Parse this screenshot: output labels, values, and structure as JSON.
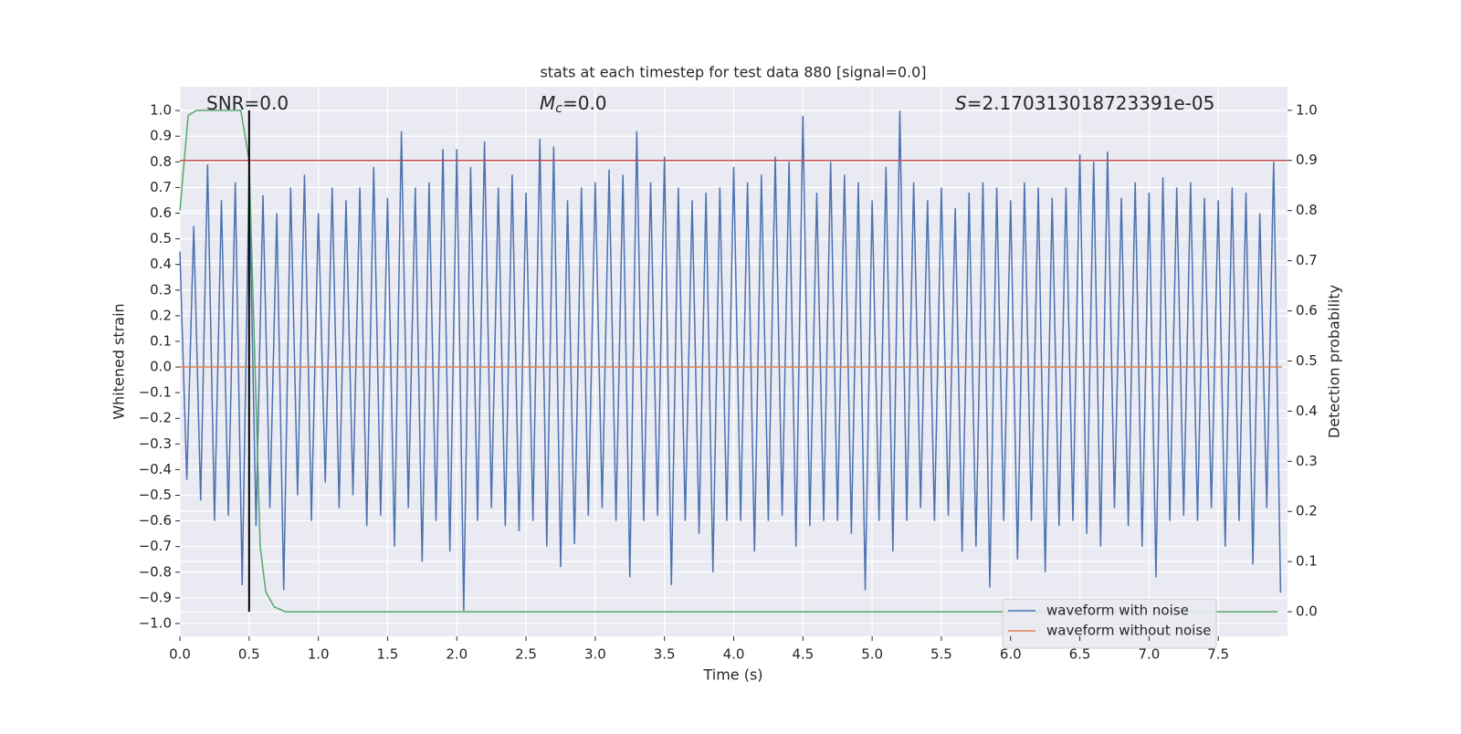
{
  "chart_data": {
    "type": "line",
    "title": "stats at each timestep for test data 880 [signal=0.0]",
    "annotations": [
      {
        "parts": [
          "SNR=0.0"
        ]
      },
      {
        "parts": [
          "M",
          "c",
          "=0.0"
        ]
      },
      {
        "parts": [
          "S",
          "=2.170313018723391e-05"
        ]
      }
    ],
    "xlabel": "Time (s)",
    "ylabel": "Whitened strain",
    "y2label": "Detection probability",
    "xlim": [
      0,
      8.0
    ],
    "ylim": [
      -1.05,
      1.093
    ],
    "y2lim": [
      -0.049,
      1.047
    ],
    "xticks": [
      {
        "value": 0,
        "label": "0.0"
      },
      0.5,
      {
        "value": 1,
        "label": "1.0"
      },
      1.5,
      {
        "value": 2,
        "label": "2.0"
      },
      2.5,
      {
        "value": 3,
        "label": "3.0"
      },
      3.5,
      {
        "value": 4,
        "label": "4.0"
      },
      4.5,
      {
        "value": 5,
        "label": "5.0"
      },
      5.5,
      {
        "value": 6,
        "label": "6.0"
      },
      6.5,
      {
        "value": 7,
        "label": "7.0"
      },
      7.5
    ],
    "yticks": [
      {
        "value": -1,
        "label": "−1.0"
      },
      {
        "value": -0.9,
        "label": "−0.9"
      },
      {
        "value": -0.8,
        "label": "−0.8"
      },
      {
        "value": -0.7,
        "label": "−0.7"
      },
      {
        "value": -0.6,
        "label": "−0.6"
      },
      {
        "value": -0.5,
        "label": "−0.5"
      },
      {
        "value": -0.4,
        "label": "−0.4"
      },
      {
        "value": -0.3,
        "label": "−0.3"
      },
      {
        "value": -0.2,
        "label": "−0.2"
      },
      {
        "value": -0.1,
        "label": "−0.1"
      },
      {
        "value": 0,
        "label": "0.0"
      },
      0.1,
      0.2,
      0.3,
      0.4,
      0.5,
      0.6,
      0.7,
      0.8,
      0.9,
      {
        "value": 1,
        "label": "1.0"
      }
    ],
    "y2ticks": [
      {
        "value": 0,
        "label": "0.0"
      },
      0.1,
      0.2,
      0.3,
      0.4,
      0.5,
      0.6,
      0.7,
      0.8,
      0.9,
      {
        "value": 1,
        "label": "1.0"
      }
    ],
    "grid": true,
    "legend": "lower right",
    "series": [
      {
        "name": "waveform with noise",
        "color": "#4c72b0",
        "x": [
          0,
          0.05,
          0.1,
          0.15,
          0.2,
          0.25,
          0.3,
          0.35,
          0.4,
          0.45,
          0.5,
          0.55,
          0.6,
          0.65,
          0.7,
          0.75,
          0.8,
          0.85,
          0.9,
          0.95,
          1,
          1.05,
          1.1,
          1.15,
          1.2,
          1.25,
          1.3,
          1.35,
          1.4,
          1.45,
          1.5,
          1.55,
          1.6,
          1.65,
          1.7,
          1.75,
          1.8,
          1.85,
          1.9,
          1.95,
          2,
          2.05,
          2.1,
          2.15,
          2.2,
          2.25,
          2.3,
          2.35,
          2.4,
          2.45,
          2.5,
          2.55,
          2.6,
          2.65,
          2.7,
          2.75,
          2.8,
          2.85,
          2.9,
          2.95,
          3,
          3.05,
          3.1,
          3.15,
          3.2,
          3.25,
          3.3,
          3.35,
          3.4,
          3.45,
          3.5,
          3.55,
          3.6,
          3.65,
          3.7,
          3.75,
          3.8,
          3.85,
          3.9,
          3.95,
          4,
          4.05,
          4.1,
          4.15,
          4.2,
          4.25,
          4.3,
          4.35,
          4.4,
          4.45,
          4.5,
          4.55,
          4.6,
          4.65,
          4.7,
          4.75,
          4.8,
          4.85,
          4.9,
          4.95,
          5,
          5.05,
          5.1,
          5.15,
          5.2,
          5.25,
          5.3,
          5.35,
          5.4,
          5.45,
          5.5,
          5.55,
          5.6,
          5.65,
          5.7,
          5.75,
          5.8,
          5.85,
          5.9,
          5.95,
          6,
          6.05,
          6.1,
          6.15,
          6.2,
          6.25,
          6.3,
          6.35,
          6.4,
          6.45,
          6.5,
          6.55,
          6.6,
          6.65,
          6.7,
          6.75,
          6.8,
          6.85,
          6.9,
          6.95,
          7,
          7.05,
          7.1,
          7.15,
          7.2,
          7.25,
          7.3,
          7.35,
          7.4,
          7.45,
          7.5,
          7.55,
          7.6,
          7.65,
          7.7,
          7.75,
          7.8,
          7.85,
          7.9,
          7.95
        ],
        "values": [
          0.45,
          -0.44,
          0.55,
          -0.52,
          0.79,
          -0.6,
          0.65,
          -0.58,
          0.72,
          -0.85,
          0.75,
          -0.62,
          0.67,
          -0.55,
          0.6,
          -0.87,
          0.7,
          -0.5,
          0.75,
          -0.6,
          0.6,
          -0.45,
          0.7,
          -0.55,
          0.65,
          -0.5,
          0.7,
          -0.62,
          0.78,
          -0.58,
          0.66,
          -0.7,
          0.92,
          -0.55,
          0.7,
          -0.76,
          0.72,
          -0.6,
          0.85,
          -0.72,
          0.85,
          -0.95,
          0.78,
          -0.6,
          0.88,
          -0.55,
          0.7,
          -0.62,
          0.75,
          -0.64,
          0.68,
          -0.6,
          0.89,
          -0.7,
          0.86,
          -0.78,
          0.65,
          -0.69,
          0.7,
          -0.58,
          0.72,
          -0.55,
          0.77,
          -0.6,
          0.75,
          -0.82,
          0.92,
          -0.6,
          0.72,
          -0.58,
          0.82,
          -0.85,
          0.7,
          -0.6,
          0.65,
          -0.65,
          0.68,
          -0.8,
          0.7,
          -0.6,
          0.78,
          -0.6,
          0.72,
          -0.72,
          0.75,
          -0.6,
          0.82,
          -0.58,
          0.8,
          -0.7,
          0.98,
          -0.62,
          0.68,
          -0.6,
          0.8,
          -0.6,
          0.75,
          -0.65,
          0.72,
          -0.87,
          0.65,
          -0.6,
          0.78,
          -0.72,
          1.0,
          -0.6,
          0.72,
          -0.55,
          0.65,
          -0.6,
          0.7,
          -0.58,
          0.62,
          -0.72,
          0.68,
          -0.7,
          0.72,
          -0.86,
          0.7,
          -0.6,
          0.65,
          -0.75,
          0.72,
          -0.6,
          0.7,
          -0.8,
          0.66,
          -0.62,
          0.7,
          -0.6,
          0.83,
          -0.65,
          0.8,
          -0.7,
          0.84,
          -0.55,
          0.66,
          -0.62,
          0.72,
          -0.7,
          0.68,
          -0.82,
          0.74,
          -0.6,
          0.7,
          -0.58,
          0.72,
          -0.6,
          0.66,
          -0.55,
          0.65,
          -0.7,
          0.7,
          -0.6,
          0.68,
          -0.77,
          0.6,
          -0.55,
          0.8,
          -0.88
        ]
      },
      {
        "name": "waveform without noise",
        "color": "#dd8452",
        "x": [
          0,
          7.96
        ],
        "values": [
          0,
          0
        ]
      },
      {
        "color": "#55a868",
        "axis": "y2",
        "x": [
          0,
          0.06,
          0.12,
          0.44,
          0.5,
          0.58,
          0.62,
          0.68,
          0.76,
          7.93
        ],
        "values": [
          0.8,
          0.99,
          1.0,
          1.0,
          0.9,
          0.13,
          0.04,
          0.01,
          0.0,
          0.0
        ]
      }
    ],
    "hline": {
      "y": 0.9,
      "axis": "y2",
      "color": "#c44e52"
    },
    "vline": {
      "x": 0.5,
      "ymin": 0,
      "ymax": 1,
      "axis": "y2",
      "color": "#000000"
    }
  }
}
